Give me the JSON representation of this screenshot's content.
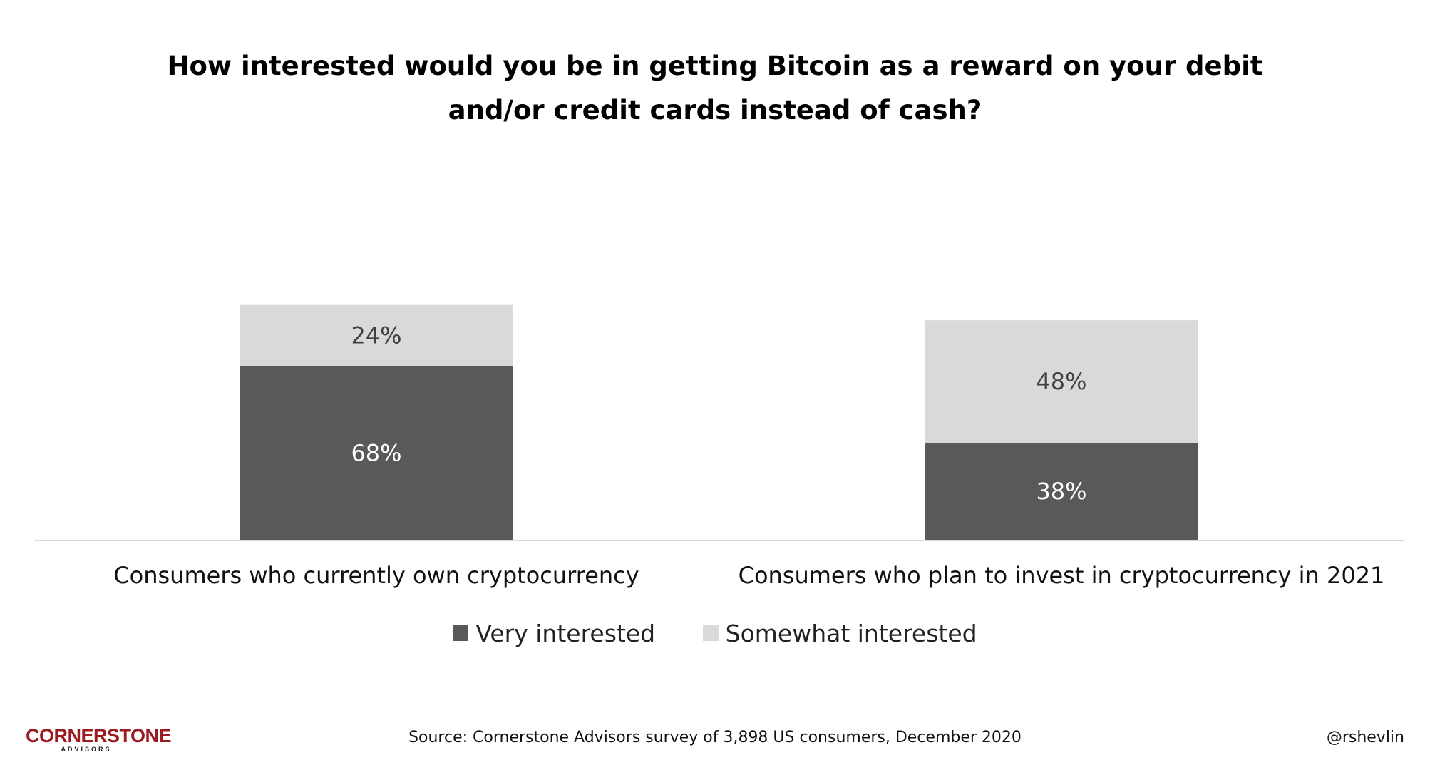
{
  "chart_data": {
    "type": "bar",
    "stacked": true,
    "title_lines": [
      "How interested would you be in getting Bitcoin as a reward on your debit",
      "and/or credit cards instead of cash?"
    ],
    "categories": [
      "Consumers who currently own cryptocurrency",
      "Consumers who plan to invest in cryptocurrency in 2021"
    ],
    "series": [
      {
        "name": "Very interested",
        "values": [
          68,
          38
        ],
        "labels": [
          "68%",
          "38%"
        ],
        "color": "#595959",
        "label_color": "#ffffff"
      },
      {
        "name": "Somewhat interested",
        "values": [
          24,
          48
        ],
        "labels": [
          "24%",
          "48%"
        ],
        "color": "#d9d9d9",
        "label_color": "#404040"
      }
    ],
    "ylim": [
      0,
      100
    ],
    "grid": false,
    "legend_position": "bottom"
  },
  "footer": {
    "logo_main": "CORNERSTONE",
    "logo_sub": "ADVISORS",
    "source": "Source: Cornerstone Advisors survey of 3,898 US consumers, December 2020",
    "handle": "@rshevlin"
  }
}
